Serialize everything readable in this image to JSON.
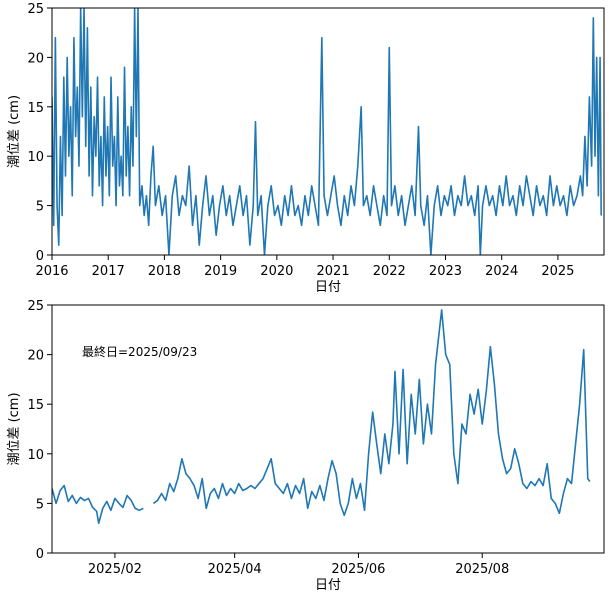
{
  "chart_data": [
    {
      "type": "line",
      "ylabel": "潮位差 (cm)",
      "xlabel": "日付",
      "color": "#1f77b4",
      "xlim": [
        2016,
        2025.82
      ],
      "xticks": [
        2016,
        2017,
        2018,
        2019,
        2020,
        2021,
        2022,
        2023,
        2024,
        2025
      ],
      "ylim": [
        0,
        25
      ],
      "yticks": [
        0,
        5,
        10,
        15,
        20,
        25
      ],
      "x": [
        2016.0,
        2016.03,
        2016.06,
        2016.09,
        2016.12,
        2016.15,
        2016.18,
        2016.21,
        2016.24,
        2016.27,
        2016.3,
        2016.33,
        2016.36,
        2016.39,
        2016.42,
        2016.45,
        2016.48,
        2016.51,
        2016.54,
        2016.57,
        2016.6,
        2016.63,
        2016.66,
        2016.69,
        2016.72,
        2016.75,
        2016.78,
        2016.81,
        2016.84,
        2016.87,
        2016.9,
        2016.93,
        2016.96,
        2016.99,
        2017.02,
        2017.05,
        2017.08,
        2017.11,
        2017.14,
        2017.17,
        2017.2,
        2017.23,
        2017.26,
        2017.29,
        2017.32,
        2017.35,
        2017.38,
        2017.41,
        2017.44,
        2017.47,
        2017.5,
        2017.53,
        2017.56,
        2017.6,
        2017.64,
        2017.68,
        2017.72,
        2017.76,
        2017.8,
        2017.84,
        2017.9,
        2017.96,
        2018.02,
        2018.08,
        2018.14,
        2018.2,
        2018.26,
        2018.32,
        2018.38,
        2018.44,
        2018.5,
        2018.56,
        2018.62,
        2018.68,
        2018.74,
        2018.8,
        2018.86,
        2018.92,
        2018.98,
        2019.04,
        2019.1,
        2019.16,
        2019.22,
        2019.28,
        2019.34,
        2019.4,
        2019.46,
        2019.52,
        2019.58,
        2019.62,
        2019.66,
        2019.72,
        2019.78,
        2019.84,
        2019.9,
        2019.96,
        2020.02,
        2020.08,
        2020.14,
        2020.2,
        2020.26,
        2020.32,
        2020.38,
        2020.44,
        2020.5,
        2020.56,
        2020.62,
        2020.68,
        2020.74,
        2020.8,
        2020.84,
        2020.9,
        2020.96,
        2021.02,
        2021.08,
        2021.14,
        2021.2,
        2021.26,
        2021.32,
        2021.38,
        2021.44,
        2021.5,
        2021.54,
        2021.6,
        2021.66,
        2021.72,
        2021.78,
        2021.84,
        2021.9,
        2021.96,
        2022.0,
        2022.04,
        2022.1,
        2022.16,
        2022.22,
        2022.28,
        2022.34,
        2022.4,
        2022.46,
        2022.52,
        2022.56,
        2022.62,
        2022.68,
        2022.74,
        2022.8,
        2022.86,
        2022.92,
        2022.98,
        2023.04,
        2023.1,
        2023.16,
        2023.22,
        2023.28,
        2023.34,
        2023.4,
        2023.46,
        2023.52,
        2023.58,
        2023.62,
        2023.66,
        2023.72,
        2023.78,
        2023.84,
        2023.9,
        2023.96,
        2024.02,
        2024.08,
        2024.14,
        2024.2,
        2024.26,
        2024.32,
        2024.38,
        2024.44,
        2024.5,
        2024.56,
        2024.62,
        2024.68,
        2024.74,
        2024.8,
        2024.86,
        2024.92,
        2024.98,
        2025.04,
        2025.1,
        2025.16,
        2025.22,
        2025.28,
        2025.34,
        2025.4,
        2025.44,
        2025.48,
        2025.52,
        2025.56,
        2025.6,
        2025.63,
        2025.66,
        2025.69,
        2025.72,
        2025.75,
        2025.77
      ],
      "values": [
        16,
        3,
        22,
        5,
        1,
        12,
        4,
        18,
        8,
        20,
        10,
        15,
        6,
        22,
        12,
        17,
        9,
        25,
        14,
        25,
        11,
        23,
        8,
        17,
        6,
        14,
        10,
        18,
        7,
        12,
        5,
        16,
        8,
        13,
        6,
        18,
        9,
        12,
        5,
        16,
        7,
        10,
        6,
        19,
        8,
        13,
        6,
        15,
        9,
        25,
        12,
        25,
        5,
        7,
        4,
        6,
        3,
        8,
        11,
        5,
        7,
        4,
        6,
        0,
        6,
        8,
        4,
        6,
        5,
        9,
        3,
        6,
        1,
        5,
        8,
        4,
        6,
        2,
        5,
        7,
        4,
        6,
        3,
        5,
        7,
        4,
        6,
        1,
        5,
        13.5,
        4,
        6,
        0,
        5,
        7,
        4,
        5,
        3,
        6,
        4,
        7,
        4,
        5,
        3,
        6,
        4,
        7,
        5,
        3,
        22,
        6,
        4,
        6,
        8,
        5,
        3,
        6,
        4,
        7,
        5,
        9,
        15,
        5,
        6,
        4,
        7,
        5,
        3,
        6,
        4,
        21,
        5,
        7,
        4,
        6,
        3,
        5,
        7,
        4,
        13,
        5,
        3,
        6,
        0,
        5,
        7,
        4,
        6,
        5,
        7,
        4,
        6,
        5,
        8,
        5,
        6,
        4,
        7,
        0,
        5,
        7,
        5,
        6,
        4,
        7,
        5,
        8,
        5,
        6,
        4,
        7,
        5,
        8,
        6,
        4,
        7,
        5,
        6,
        4,
        8,
        5,
        7,
        5,
        6,
        4,
        7,
        5,
        6,
        8,
        6,
        12,
        7,
        16,
        9,
        24,
        10,
        20,
        6,
        20,
        4
      ]
    },
    {
      "type": "line",
      "ylabel": "潮位差 (cm)",
      "xlabel": "日付",
      "color": "#1f77b4",
      "annotation": "最終日=2025/09/23",
      "xlim": [
        1,
        273
      ],
      "xticks": [
        {
          "value": 32,
          "label": "2025/02"
        },
        {
          "value": 91,
          "label": "2025/04"
        },
        {
          "value": 152,
          "label": "2025/06"
        },
        {
          "value": 213,
          "label": "2025/08"
        }
      ],
      "ylim": [
        0,
        25
      ],
      "yticks": [
        0,
        5,
        10,
        15,
        20,
        25
      ],
      "x": [
        1,
        3,
        5,
        7,
        9,
        11,
        13,
        15,
        17,
        19,
        21,
        23,
        24,
        26,
        28,
        30,
        32,
        34,
        36,
        38,
        40,
        42,
        44,
        46,
        48,
        51,
        53,
        55,
        57,
        59,
        61,
        63,
        65,
        67,
        69,
        71,
        73,
        75,
        77,
        79,
        81,
        83,
        85,
        87,
        89,
        91,
        93,
        95,
        97,
        99,
        101,
        103,
        105,
        107,
        109,
        111,
        113,
        115,
        117,
        119,
        121,
        123,
        125,
        127,
        129,
        131,
        133,
        135,
        137,
        139,
        141,
        143,
        145,
        147,
        149,
        151,
        153,
        155,
        157,
        159,
        161,
        163,
        165,
        167,
        169,
        170,
        172,
        174,
        176,
        178,
        180,
        182,
        184,
        186,
        188,
        190,
        193,
        195,
        197,
        199,
        201,
        203,
        205,
        207,
        209,
        211,
        213,
        215,
        217,
        219,
        221,
        223,
        225,
        227,
        229,
        231,
        233,
        235,
        237,
        239,
        241,
        243,
        245,
        247,
        249,
        251,
        253,
        255,
        257,
        259,
        261,
        263,
        265,
        266
      ],
      "values": [
        6.5,
        5,
        6.3,
        6.8,
        5.2,
        5.8,
        5,
        5.6,
        5.3,
        5.5,
        4.6,
        4.2,
        3,
        4.5,
        5.2,
        4.3,
        5.5,
        5,
        4.6,
        5.8,
        5.3,
        4.5,
        4.3,
        4.5,
        null,
        5,
        5.3,
        6,
        5.3,
        7,
        6.2,
        7.5,
        9.5,
        8,
        7.5,
        6.8,
        5.5,
        7.5,
        4.5,
        6,
        6.5,
        5.5,
        7,
        5.8,
        6.5,
        6,
        7,
        6.3,
        6.5,
        6.8,
        6.5,
        7,
        7.5,
        8.5,
        9.5,
        7,
        6.5,
        6,
        7,
        5.5,
        6.8,
        6,
        7.5,
        4.5,
        6.2,
        5.5,
        6.8,
        5.3,
        7.5,
        9.3,
        8,
        5,
        3.8,
        5,
        7.5,
        5.5,
        7,
        4.3,
        10,
        14.2,
        11,
        8,
        12,
        9,
        13,
        18.3,
        10,
        18.5,
        9,
        16,
        12,
        17.5,
        11,
        15,
        12,
        19,
        24.5,
        20,
        19,
        10,
        7,
        13,
        12,
        16,
        14,
        16.5,
        13,
        16.3,
        20.8,
        17,
        12,
        9.5,
        8,
        8.5,
        10.5,
        9,
        7,
        6.5,
        7.2,
        6.8,
        7.5,
        6.8,
        9,
        5.5,
        5,
        4,
        6,
        7.5,
        7,
        11,
        15,
        20.5,
        7.5,
        7.2
      ]
    }
  ]
}
